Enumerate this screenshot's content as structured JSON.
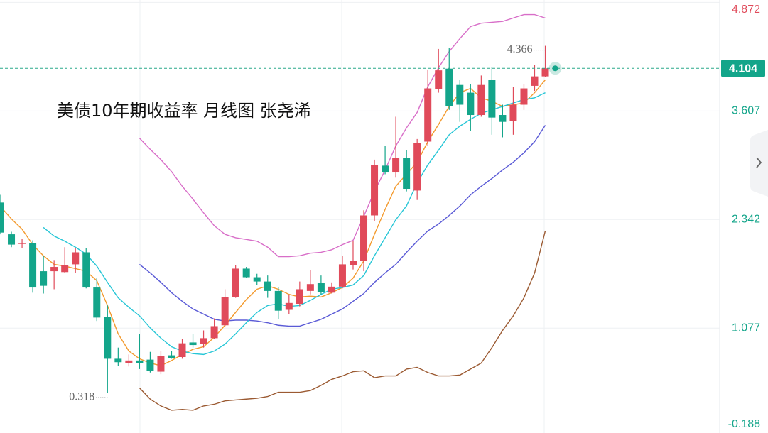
{
  "chart_data": {
    "type": "candlestick",
    "title": "美债10年期收益率 月线图 张尧浠",
    "up_color": "#e04a5a",
    "down_color": "#13a58a",
    "open": [
      2.54,
      2.17,
      2.06,
      2.07,
      1.74,
      1.74,
      1.73,
      1.82,
      1.96,
      1.55,
      1.21,
      0.72,
      0.67,
      0.7,
      0.71,
      0.57,
      0.76,
      0.74,
      0.91,
      0.89,
      0.96,
      1.11,
      1.44,
      1.77,
      1.67,
      1.62,
      1.51,
      1.29,
      1.36,
      1.51,
      1.6,
      1.49,
      1.56,
      1.81,
      1.86,
      2.39,
      2.97,
      2.89,
      3.06,
      2.68,
      3.25,
      3.86,
      4.1,
      3.91,
      3.82,
      3.56,
      3.97,
      3.56,
      3.49,
      3.68,
      3.9,
      4.01
    ],
    "high": [
      2.63,
      2.2,
      2.12,
      2.1,
      1.92,
      1.87,
      2.02,
      2.01,
      2.01,
      1.66,
      1.34,
      0.85,
      0.77,
      1.01,
      0.8,
      0.81,
      0.81,
      0.95,
      1.01,
      1.05,
      1.19,
      1.53,
      1.81,
      1.79,
      1.71,
      1.69,
      1.55,
      1.47,
      1.62,
      1.75,
      1.69,
      1.61,
      1.92,
      2.09,
      2.45,
      3.04,
      3.2,
      3.54,
      3.15,
      3.28,
      4.09,
      4.33,
      4.34,
      3.97,
      3.92,
      4.02,
      4.12,
      3.68,
      3.89,
      3.92,
      4.14,
      4.366
    ],
    "low": [
      2.17,
      2.02,
      2.01,
      1.49,
      1.48,
      1.53,
      1.72,
      1.72,
      1.54,
      1.16,
      0.318,
      0.64,
      0.63,
      0.6,
      0.56,
      0.54,
      0.72,
      0.72,
      0.85,
      0.85,
      0.95,
      1.1,
      1.43,
      1.66,
      1.58,
      1.43,
      1.18,
      1.24,
      1.33,
      1.47,
      1.47,
      1.48,
      1.54,
      1.76,
      1.74,
      2.32,
      2.87,
      2.83,
      2.67,
      2.57,
      3.2,
      3.82,
      3.62,
      3.48,
      3.37,
      3.54,
      3.33,
      3.3,
      3.33,
      3.62,
      3.84,
      4.0
    ],
    "close": [
      2.19,
      2.05,
      2.07,
      1.55,
      1.57,
      1.79,
      1.81,
      1.96,
      1.55,
      1.2,
      0.72,
      0.68,
      0.7,
      0.67,
      0.58,
      0.75,
      0.73,
      0.9,
      0.88,
      0.96,
      1.1,
      1.44,
      1.77,
      1.67,
      1.62,
      1.51,
      1.28,
      1.37,
      1.53,
      1.59,
      1.5,
      1.56,
      1.82,
      1.86,
      2.39,
      2.98,
      2.89,
      3.06,
      2.7,
      3.23,
      3.87,
      4.08,
      3.66,
      3.68,
      3.56,
      3.91,
      3.53,
      3.48,
      3.68,
      3.87,
      4.01,
      4.104
    ],
    "lines": [
      {
        "color": "#d86ec8",
        "values": [
          null,
          null,
          null,
          null,
          null,
          null,
          null,
          null,
          null,
          null,
          null,
          null,
          null,
          3.29,
          3.16,
          3.04,
          2.9,
          2.73,
          2.58,
          2.42,
          2.27,
          2.17,
          2.13,
          2.11,
          2.09,
          2.02,
          1.91,
          1.91,
          1.92,
          1.95,
          1.96,
          1.99,
          2.05,
          2.1,
          2.38,
          2.67,
          2.92,
          3.2,
          3.41,
          3.59,
          3.89,
          4.11,
          4.3,
          4.45,
          4.59,
          4.63,
          4.64,
          4.65,
          4.69,
          4.73,
          4.73,
          4.69
        ]
      },
      {
        "color": "#5a5ad6",
        "values": [
          null,
          null,
          null,
          null,
          null,
          null,
          null,
          null,
          null,
          null,
          null,
          null,
          null,
          1.82,
          1.72,
          1.61,
          1.49,
          1.39,
          1.3,
          1.24,
          1.18,
          1.16,
          1.17,
          1.17,
          1.16,
          1.14,
          1.11,
          1.1,
          1.1,
          1.14,
          1.18,
          1.24,
          1.3,
          1.39,
          1.48,
          1.61,
          1.72,
          1.82,
          1.96,
          2.09,
          2.21,
          2.29,
          2.39,
          2.5,
          2.63,
          2.73,
          2.82,
          2.92,
          3.01,
          3.12,
          3.25,
          3.44
        ]
      },
      {
        "color": "#9b5a32",
        "values": [
          null,
          null,
          null,
          null,
          null,
          null,
          null,
          null,
          null,
          null,
          null,
          null,
          null,
          0.38,
          0.25,
          0.17,
          0.12,
          0.13,
          0.12,
          0.17,
          0.19,
          0.23,
          0.24,
          0.25,
          0.26,
          0.28,
          0.33,
          0.33,
          0.33,
          0.35,
          0.41,
          0.48,
          0.52,
          0.57,
          0.58,
          0.5,
          0.52,
          0.52,
          0.6,
          0.62,
          0.56,
          0.52,
          0.52,
          0.53,
          0.6,
          0.67,
          0.85,
          1.05,
          1.22,
          1.43,
          1.72,
          2.21
        ]
      },
      {
        "color": "#f39a2e",
        "values": [
          2.49,
          2.35,
          2.23,
          2.05,
          1.92,
          1.82,
          1.8,
          1.77,
          1.74,
          1.63,
          1.34,
          1.01,
          0.81,
          0.72,
          0.67,
          0.64,
          0.7,
          0.77,
          0.83,
          0.86,
          0.97,
          1.11,
          1.26,
          1.41,
          1.53,
          1.57,
          1.53,
          1.47,
          1.44,
          1.45,
          1.44,
          1.49,
          1.55,
          1.66,
          1.86,
          2.17,
          2.46,
          2.73,
          2.87,
          3.01,
          3.25,
          3.45,
          3.66,
          3.82,
          3.87,
          3.76,
          3.72,
          3.66,
          3.68,
          3.7,
          3.82,
          3.97
        ]
      },
      {
        "color": "#26c6d6",
        "values": [
          null,
          null,
          null,
          null,
          2.25,
          2.15,
          2.09,
          2.02,
          1.94,
          1.8,
          1.61,
          1.43,
          1.32,
          1.22,
          1.08,
          0.96,
          0.86,
          0.81,
          0.78,
          0.77,
          0.81,
          0.89,
          1.01,
          1.14,
          1.26,
          1.34,
          1.36,
          1.33,
          1.34,
          1.4,
          1.47,
          1.53,
          1.55,
          1.58,
          1.69,
          1.92,
          2.13,
          2.34,
          2.5,
          2.77,
          2.98,
          3.15,
          3.33,
          3.43,
          3.51,
          3.58,
          3.62,
          3.66,
          3.7,
          3.74,
          3.76,
          3.82
        ]
      }
    ],
    "ylim": [
      -0.145,
      4.9
    ],
    "yticks": [
      4.872,
      3.607,
      2.342,
      1.077,
      -0.188
    ]
  }
}
